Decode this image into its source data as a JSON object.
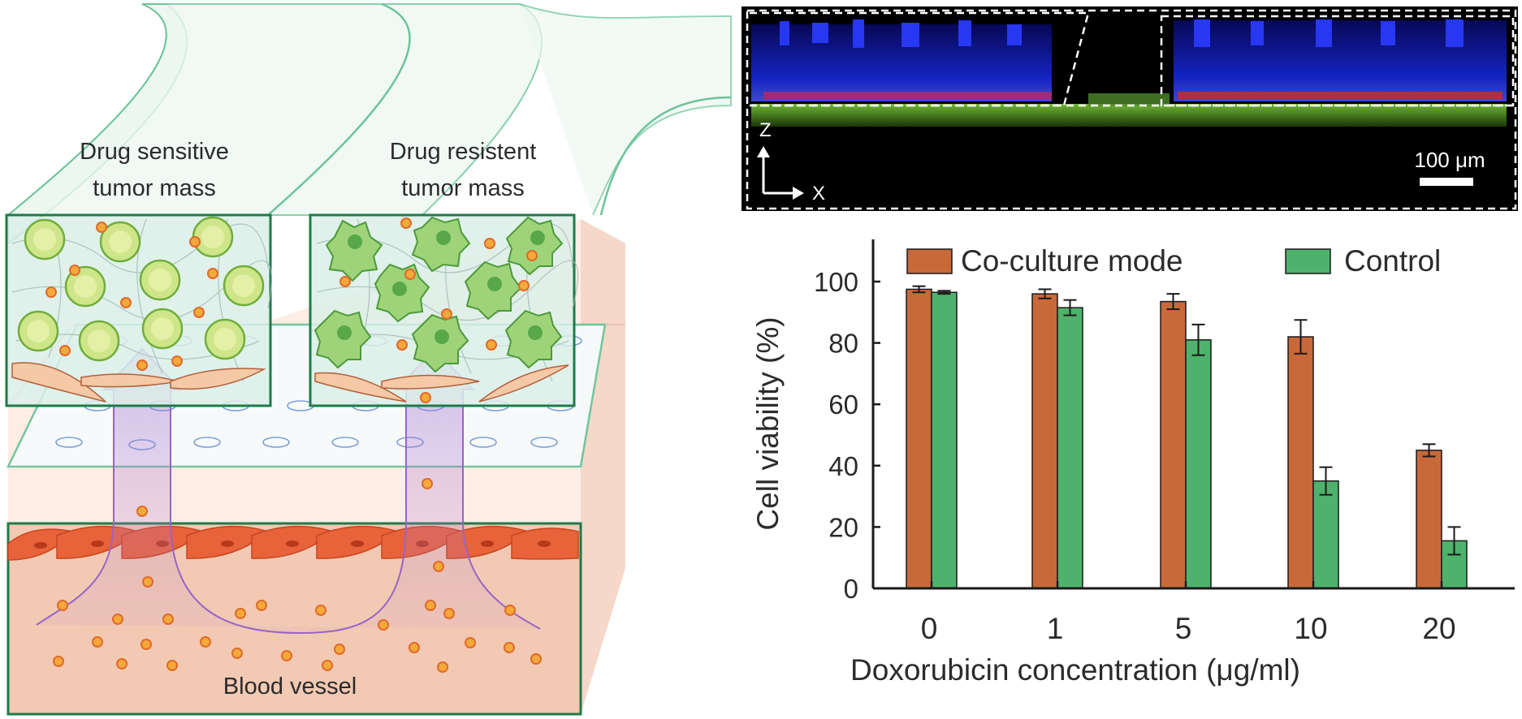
{
  "schematic": {
    "sensitive_label_line1": "Drug sensitive",
    "sensitive_label_line2": "tumor mass",
    "resistant_label_line1": "Drug resistent",
    "resistant_label_line2": "tumor mass",
    "vessel_label": "Blood vessel"
  },
  "micrograph": {
    "axis_z": "Z",
    "axis_x": "X",
    "scale_bar": "100 μm"
  },
  "colors": {
    "coculture": "#c8693a",
    "control": "#4fb26c",
    "frame_green": "#1f7a4a"
  },
  "chart_data": {
    "type": "bar",
    "xlabel": "Doxorubicin concentration (μg/ml)",
    "ylabel": "Cell viability (%)",
    "ylim": [
      0,
      115
    ],
    "yticks": [
      0,
      20,
      40,
      60,
      80,
      100
    ],
    "categories": [
      "0",
      "1",
      "5",
      "10",
      "20"
    ],
    "legend_position": "top",
    "series": [
      {
        "name": "Co-culture mode",
        "color": "#c8693a",
        "values": [
          97.5,
          96,
          93.5,
          82,
          45
        ],
        "errors": [
          1,
          1.5,
          2.5,
          5.5,
          2
        ]
      },
      {
        "name": "Control",
        "color": "#4fb26c",
        "values": [
          96.5,
          91.5,
          81,
          35,
          15.5
        ],
        "errors": [
          0.5,
          2.5,
          5,
          4.5,
          4.5
        ]
      }
    ]
  }
}
